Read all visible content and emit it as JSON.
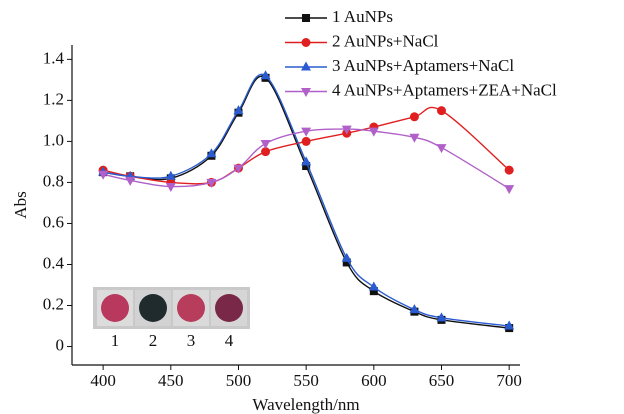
{
  "chart_data": {
    "type": "line",
    "x_label": "Wavelength/nm",
    "y_label": "Abs",
    "x": [
      400,
      420,
      450,
      480,
      500,
      520,
      550,
      580,
      600,
      630,
      650,
      700
    ],
    "series": [
      {
        "name": "1 AuNPs",
        "color": "#111111",
        "marker": "square",
        "values": [
          0.85,
          0.83,
          0.82,
          0.93,
          1.14,
          1.31,
          0.88,
          0.41,
          0.27,
          0.17,
          0.13,
          0.09
        ]
      },
      {
        "name": "2 AuNPs+NaCl",
        "color": "#e02020",
        "marker": "circle",
        "values": [
          0.86,
          0.83,
          0.8,
          0.8,
          0.87,
          0.95,
          1.0,
          1.04,
          1.07,
          1.12,
          1.15,
          0.86
        ]
      },
      {
        "name": "3 AuNPs+Aptamers+NaCl",
        "color": "#2a5bd0",
        "marker": "triangle",
        "values": [
          0.85,
          0.83,
          0.83,
          0.94,
          1.15,
          1.32,
          0.9,
          0.43,
          0.29,
          0.18,
          0.14,
          0.1
        ]
      },
      {
        "name": "4 AuNPs+Aptamers+ZEA+NaCl",
        "color": "#b060c8",
        "marker": "triangle-down",
        "values": [
          0.84,
          0.81,
          0.78,
          0.8,
          0.87,
          0.99,
          1.05,
          1.06,
          1.05,
          1.02,
          0.97,
          0.77
        ]
      }
    ],
    "xlim": [
      377,
      708
    ],
    "xticks": [
      400,
      450,
      500,
      550,
      600,
      650,
      700
    ],
    "ylim": [
      -0.09,
      1.47
    ],
    "yticks": [
      0,
      0.2,
      0.4,
      0.6,
      0.8,
      {
        "value": 1,
        "label": "1.0"
      },
      1.2,
      1.4
    ],
    "inset_labels": [
      "1",
      "2",
      "3",
      "4"
    ]
  }
}
